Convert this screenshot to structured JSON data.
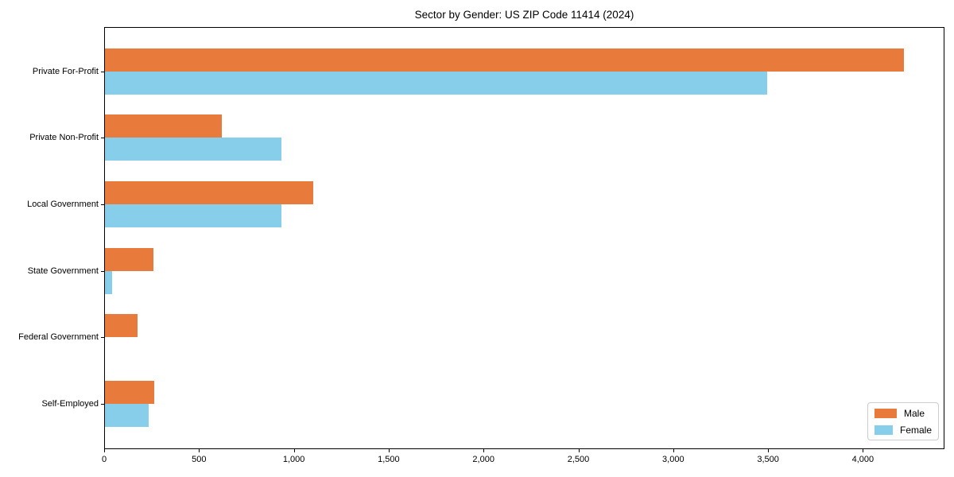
{
  "figure": {
    "title": "Sector by Gender: US ZIP Code 11414 (2024)"
  },
  "chart_data": {
    "type": "bar",
    "orientation": "horizontal",
    "title": "Sector by Gender: US ZIP Code 11414 (2024)",
    "categories": [
      "Private For-Profit",
      "Private Non-Profit",
      "Local Government",
      "State Government",
      "Federal Government",
      "Self-Employed"
    ],
    "series": [
      {
        "name": "Male",
        "color": "#E87A3C",
        "values": [
          4210,
          615,
          1100,
          255,
          170,
          260
        ]
      },
      {
        "name": "Female",
        "color": "#87CEEB",
        "values": [
          3490,
          930,
          930,
          37,
          0,
          230
        ]
      }
    ],
    "xlabel": "",
    "ylabel": "",
    "xlim": [
      0,
      4430
    ],
    "x_ticks": [
      0,
      500,
      1000,
      1500,
      2000,
      2500,
      3000,
      3500,
      4000
    ],
    "x_tick_labels": [
      "0",
      "500",
      "1,000",
      "1,500",
      "2,000",
      "2,500",
      "3,000",
      "3,500",
      "4,000"
    ],
    "grid": false,
    "legend_position": "lower right"
  }
}
